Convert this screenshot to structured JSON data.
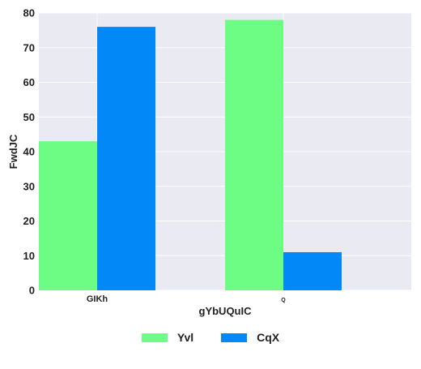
{
  "chart_data": {
    "type": "bar",
    "categories": [
      "GIKh",
      "Q"
    ],
    "series": [
      {
        "name": "Yvl",
        "values": [
          43,
          78
        ],
        "color": "#6dfd85"
      },
      {
        "name": "CqX",
        "values": [
          76,
          11
        ],
        "color": "#0388f8"
      }
    ],
    "xlabel": "gYbUQuIC",
    "ylabel": "FwdJC",
    "ylim": [
      0,
      80
    ],
    "yticks": [
      0,
      10,
      20,
      30,
      40,
      50,
      60,
      70,
      80
    ],
    "grid": true,
    "legend_position": "bottom-center",
    "background": "#e9eaf2"
  }
}
